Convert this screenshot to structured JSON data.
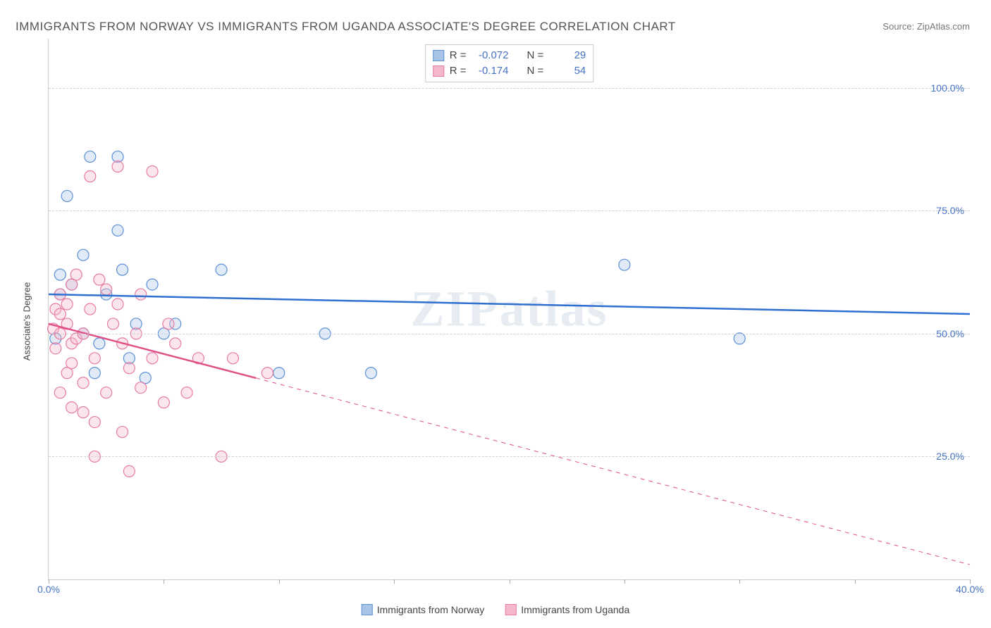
{
  "title": "IMMIGRANTS FROM NORWAY VS IMMIGRANTS FROM UGANDA ASSOCIATE'S DEGREE CORRELATION CHART",
  "source_prefix": "Source:",
  "source": "ZipAtlas.com",
  "ylabel": "Associate's Degree",
  "watermark": "ZIPatlas",
  "type": "scatter",
  "background_color": "#ffffff",
  "grid_color": "#d0d0d0",
  "axis_color": "#cccccc",
  "tick_label_color": "#4472c4",
  "tick_fontsize": 14,
  "title_fontsize": 17,
  "label_fontsize": 13,
  "marker_radius": 8,
  "marker_fill_opacity": 0.35,
  "marker_stroke_width": 1.2,
  "line_width": 2.5,
  "xlim": [
    0,
    40
  ],
  "ylim": [
    0,
    110
  ],
  "x_ticks": [
    0,
    5,
    10,
    15,
    20,
    25,
    30,
    35,
    40
  ],
  "x_tick_labels": {
    "0": "0.0%",
    "40": "40.0%"
  },
  "y_gridlines": [
    25,
    50,
    75,
    100
  ],
  "y_tick_labels": [
    "25.0%",
    "50.0%",
    "75.0%",
    "100.0%"
  ],
  "stats": {
    "r_label": "R =",
    "n_label": "N ="
  },
  "series": [
    {
      "label": "Immigrants from Norway",
      "fill": "#a8c5e8",
      "stroke": "#5b8fd6",
      "line_color": "#2f6fd0",
      "R": "-0.072",
      "N": "29",
      "trend": {
        "x1": 0,
        "y1": 58,
        "x2": 40,
        "y2": 54,
        "solid_until_x": 40
      },
      "points": [
        [
          0.3,
          49
        ],
        [
          0.5,
          58
        ],
        [
          0.5,
          62
        ],
        [
          0.8,
          78
        ],
        [
          1.0,
          60
        ],
        [
          1.5,
          66
        ],
        [
          1.5,
          50
        ],
        [
          1.8,
          86
        ],
        [
          2.0,
          42
        ],
        [
          2.2,
          48
        ],
        [
          2.5,
          58
        ],
        [
          3.0,
          86
        ],
        [
          3.0,
          71
        ],
        [
          3.2,
          63
        ],
        [
          3.5,
          45
        ],
        [
          3.8,
          52
        ],
        [
          4.2,
          41
        ],
        [
          4.5,
          60
        ],
        [
          5.0,
          50
        ],
        [
          5.5,
          52
        ],
        [
          7.5,
          63
        ],
        [
          10.0,
          42
        ],
        [
          12.0,
          50
        ],
        [
          14.0,
          42
        ],
        [
          25.0,
          64
        ],
        [
          30.0,
          49
        ]
      ]
    },
    {
      "label": "Immigrants from Uganda",
      "fill": "#f5b8cb",
      "stroke": "#e77ba3",
      "line_color": "#e04f86",
      "R": "-0.174",
      "N": "54",
      "trend": {
        "x1": 0,
        "y1": 52,
        "x2": 40,
        "y2": 3,
        "solid_until_x": 9
      },
      "points": [
        [
          0.2,
          51
        ],
        [
          0.3,
          55
        ],
        [
          0.3,
          47
        ],
        [
          0.5,
          50
        ],
        [
          0.5,
          58
        ],
        [
          0.5,
          54
        ],
        [
          0.5,
          38
        ],
        [
          0.8,
          52
        ],
        [
          0.8,
          56
        ],
        [
          0.8,
          42
        ],
        [
          1.0,
          60
        ],
        [
          1.0,
          48
        ],
        [
          1.0,
          44
        ],
        [
          1.0,
          35
        ],
        [
          1.2,
          62
        ],
        [
          1.2,
          49
        ],
        [
          1.5,
          40
        ],
        [
          1.5,
          34
        ],
        [
          1.5,
          50
        ],
        [
          1.8,
          82
        ],
        [
          1.8,
          55
        ],
        [
          2.0,
          45
        ],
        [
          2.0,
          32
        ],
        [
          2.0,
          25
        ],
        [
          2.2,
          61
        ],
        [
          2.5,
          38
        ],
        [
          2.5,
          59
        ],
        [
          2.8,
          52
        ],
        [
          3.0,
          84
        ],
        [
          3.0,
          56
        ],
        [
          3.2,
          30
        ],
        [
          3.2,
          48
        ],
        [
          3.5,
          22
        ],
        [
          3.5,
          43
        ],
        [
          3.8,
          50
        ],
        [
          4.0,
          58
        ],
        [
          4.0,
          39
        ],
        [
          4.5,
          45
        ],
        [
          4.5,
          83
        ],
        [
          5.0,
          36
        ],
        [
          5.2,
          52
        ],
        [
          5.5,
          48
        ],
        [
          6.0,
          38
        ],
        [
          6.5,
          45
        ],
        [
          7.5,
          25
        ],
        [
          8.0,
          45
        ],
        [
          9.5,
          42
        ]
      ]
    }
  ]
}
